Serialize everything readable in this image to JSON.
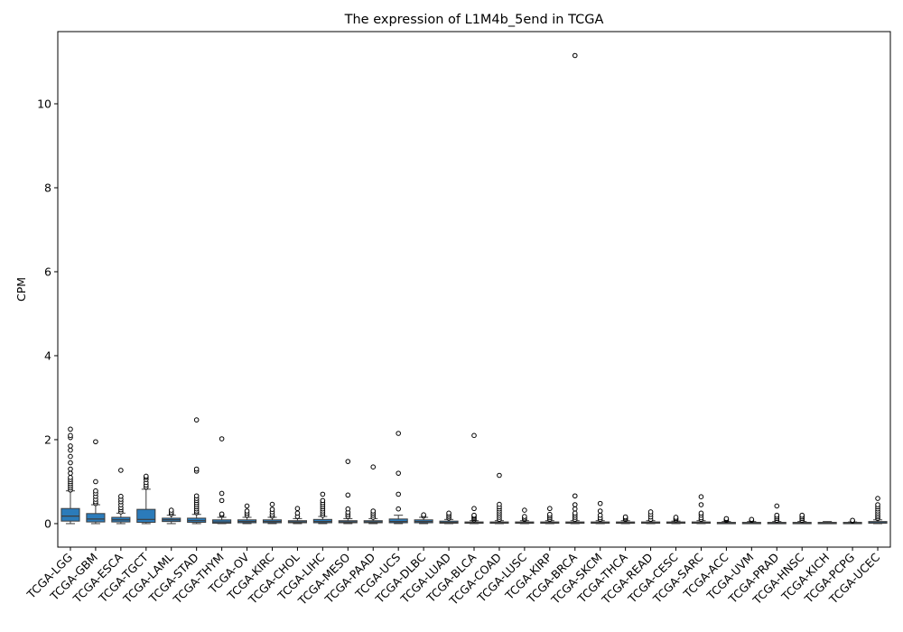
{
  "chart_data": {
    "type": "box",
    "title": "The expression of L1M4b_5end in TCGA",
    "xlabel": "",
    "ylabel": "CPM",
    "ylim": [
      -0.56,
      11.72
    ],
    "yticks": [
      0,
      2,
      4,
      6,
      8,
      10
    ],
    "grid": false,
    "legend": "none",
    "box_color": "#2b7bba",
    "categories": [
      "TCGA-LGG",
      "TCGA-GBM",
      "TCGA-ESCA",
      "TCGA-TGCT",
      "TCGA-LAML",
      "TCGA-STAD",
      "TCGA-THYM",
      "TCGA-OV",
      "TCGA-KIRC",
      "TCGA-CHOL",
      "TCGA-LIHC",
      "TCGA-MESO",
      "TCGA-PAAD",
      "TCGA-UCS",
      "TCGA-DLBC",
      "TCGA-LUAD",
      "TCGA-BLCA",
      "TCGA-COAD",
      "TCGA-LUSC",
      "TCGA-KIRP",
      "TCGA-BRCA",
      "TCGA-SKCM",
      "TCGA-THCA",
      "TCGA-READ",
      "TCGA-CESC",
      "TCGA-SARC",
      "TCGA-ACC",
      "TCGA-UVM",
      "TCGA-PRAD",
      "TCGA-HNSC",
      "TCGA-KICH",
      "TCGA-PCPG",
      "TCGA-UCEC"
    ],
    "boxes": [
      {
        "whislo": 0.0,
        "q1": 0.06,
        "med": 0.18,
        "q3": 0.36,
        "whishi": 0.78,
        "fliers": [
          0.8,
          0.85,
          0.9,
          0.95,
          1.0,
          1.05,
          1.1,
          1.2,
          1.3,
          1.45,
          1.6,
          1.75,
          1.85,
          2.05,
          2.1,
          2.25
        ]
      },
      {
        "whislo": 0.0,
        "q1": 0.04,
        "med": 0.11,
        "q3": 0.24,
        "whishi": 0.45,
        "fliers": [
          0.48,
          0.52,
          0.58,
          0.65,
          0.72,
          0.78,
          1.0,
          1.95
        ]
      },
      {
        "whislo": 0.0,
        "q1": 0.04,
        "med": 0.09,
        "q3": 0.15,
        "whishi": 0.25,
        "fliers": [
          0.28,
          0.33,
          0.38,
          0.45,
          0.52,
          0.58,
          0.65,
          1.27
        ]
      },
      {
        "whislo": 0.0,
        "q1": 0.03,
        "med": 0.1,
        "q3": 0.34,
        "whishi": 0.82,
        "fliers": [
          0.87,
          0.92,
          0.98,
          1.05,
          1.1,
          1.13
        ]
      },
      {
        "whislo": 0.0,
        "q1": 0.05,
        "med": 0.09,
        "q3": 0.13,
        "whishi": 0.2,
        "fliers": [
          0.23,
          0.27,
          0.32
        ]
      },
      {
        "whislo": 0.0,
        "q1": 0.03,
        "med": 0.07,
        "q3": 0.13,
        "whishi": 0.22,
        "fliers": [
          0.26,
          0.3,
          0.35,
          0.4,
          0.45,
          0.5,
          0.55,
          0.6,
          0.66,
          1.25,
          1.3,
          2.47
        ]
      },
      {
        "whislo": 0.0,
        "q1": 0.01,
        "med": 0.04,
        "q3": 0.09,
        "whishi": 0.15,
        "fliers": [
          0.2,
          0.23,
          0.55,
          0.72,
          2.02
        ]
      },
      {
        "whislo": 0.0,
        "q1": 0.02,
        "med": 0.05,
        "q3": 0.09,
        "whishi": 0.15,
        "fliers": [
          0.2,
          0.25,
          0.3,
          0.42
        ]
      },
      {
        "whislo": 0.0,
        "q1": 0.02,
        "med": 0.05,
        "q3": 0.09,
        "whishi": 0.15,
        "fliers": [
          0.18,
          0.22,
          0.28,
          0.34,
          0.46
        ]
      },
      {
        "whislo": 0.0,
        "q1": 0.02,
        "med": 0.04,
        "q3": 0.07,
        "whishi": 0.12,
        "fliers": [
          0.17,
          0.25,
          0.36
        ]
      },
      {
        "whislo": 0.0,
        "q1": 0.02,
        "med": 0.05,
        "q3": 0.1,
        "whishi": 0.17,
        "fliers": [
          0.2,
          0.25,
          0.3,
          0.35,
          0.4,
          0.45,
          0.5,
          0.55,
          0.7
        ]
      },
      {
        "whislo": 0.0,
        "q1": 0.02,
        "med": 0.04,
        "q3": 0.07,
        "whishi": 0.12,
        "fliers": [
          0.17,
          0.22,
          0.27,
          0.35,
          0.68,
          1.48
        ]
      },
      {
        "whislo": 0.0,
        "q1": 0.02,
        "med": 0.04,
        "q3": 0.07,
        "whishi": 0.12,
        "fliers": [
          0.15,
          0.2,
          0.25,
          0.3,
          1.35
        ]
      },
      {
        "whislo": 0.0,
        "q1": 0.02,
        "med": 0.05,
        "q3": 0.11,
        "whishi": 0.2,
        "fliers": [
          0.35,
          0.7,
          1.2,
          2.15
        ]
      },
      {
        "whislo": 0.0,
        "q1": 0.02,
        "med": 0.05,
        "q3": 0.09,
        "whishi": 0.15,
        "fliers": [
          0.18,
          0.21
        ]
      },
      {
        "whislo": 0.0,
        "q1": 0.01,
        "med": 0.03,
        "q3": 0.06,
        "whishi": 0.1,
        "fliers": [
          0.13,
          0.17,
          0.21,
          0.25
        ]
      },
      {
        "whislo": 0.0,
        "q1": 0.01,
        "med": 0.02,
        "q3": 0.04,
        "whishi": 0.07,
        "fliers": [
          0.09,
          0.12,
          0.15,
          0.18,
          0.2,
          0.36,
          2.1
        ]
      },
      {
        "whislo": 0.0,
        "q1": 0.01,
        "med": 0.02,
        "q3": 0.04,
        "whishi": 0.07,
        "fliers": [
          0.1,
          0.15,
          0.2,
          0.25,
          0.3,
          0.35,
          0.4,
          0.46,
          1.15
        ]
      },
      {
        "whislo": 0.0,
        "q1": 0.01,
        "med": 0.02,
        "q3": 0.04,
        "whishi": 0.07,
        "fliers": [
          0.1,
          0.13,
          0.17,
          0.32
        ]
      },
      {
        "whislo": 0.0,
        "q1": 0.01,
        "med": 0.02,
        "q3": 0.04,
        "whishi": 0.07,
        "fliers": [
          0.1,
          0.14,
          0.18,
          0.22,
          0.36
        ]
      },
      {
        "whislo": 0.0,
        "q1": 0.01,
        "med": 0.02,
        "q3": 0.04,
        "whishi": 0.07,
        "fliers": [
          0.1,
          0.15,
          0.2,
          0.25,
          0.35,
          0.45,
          0.66,
          11.15
        ]
      },
      {
        "whislo": 0.0,
        "q1": 0.01,
        "med": 0.02,
        "q3": 0.04,
        "whishi": 0.07,
        "fliers": [
          0.1,
          0.14,
          0.2,
          0.3,
          0.48
        ]
      },
      {
        "whislo": 0.0,
        "q1": 0.01,
        "med": 0.02,
        "q3": 0.04,
        "whishi": 0.07,
        "fliers": [
          0.1,
          0.13,
          0.16
        ]
      },
      {
        "whislo": 0.0,
        "q1": 0.01,
        "med": 0.02,
        "q3": 0.04,
        "whishi": 0.07,
        "fliers": [
          0.1,
          0.16,
          0.22,
          0.28
        ]
      },
      {
        "whislo": 0.0,
        "q1": 0.01,
        "med": 0.02,
        "q3": 0.04,
        "whishi": 0.06,
        "fliers": [
          0.09,
          0.12,
          0.15
        ]
      },
      {
        "whislo": 0.0,
        "q1": 0.01,
        "med": 0.02,
        "q3": 0.04,
        "whishi": 0.07,
        "fliers": [
          0.1,
          0.14,
          0.2,
          0.25,
          0.45,
          0.64
        ]
      },
      {
        "whislo": 0.0,
        "q1": 0.01,
        "med": 0.02,
        "q3": 0.03,
        "whishi": 0.05,
        "fliers": [
          0.08,
          0.1,
          0.12
        ]
      },
      {
        "whislo": 0.0,
        "q1": 0.01,
        "med": 0.02,
        "q3": 0.03,
        "whishi": 0.05,
        "fliers": [
          0.08,
          0.1
        ]
      },
      {
        "whislo": 0.0,
        "q1": 0.01,
        "med": 0.02,
        "q3": 0.03,
        "whishi": 0.05,
        "fliers": [
          0.08,
          0.12,
          0.16,
          0.2,
          0.42
        ]
      },
      {
        "whislo": 0.0,
        "q1": 0.01,
        "med": 0.02,
        "q3": 0.03,
        "whishi": 0.05,
        "fliers": [
          0.08,
          0.12,
          0.16,
          0.2
        ]
      },
      {
        "whislo": 0.0,
        "q1": 0.01,
        "med": 0.02,
        "q3": 0.03,
        "whishi": 0.05,
        "fliers": []
      },
      {
        "whislo": 0.0,
        "q1": 0.0,
        "med": 0.02,
        "q3": 0.03,
        "whishi": 0.04,
        "fliers": [
          0.06,
          0.08
        ]
      },
      {
        "whislo": 0.0,
        "q1": 0.01,
        "med": 0.02,
        "q3": 0.05,
        "whishi": 0.09,
        "fliers": [
          0.12,
          0.16,
          0.2,
          0.25,
          0.3,
          0.35,
          0.4,
          0.45,
          0.6
        ]
      }
    ]
  }
}
